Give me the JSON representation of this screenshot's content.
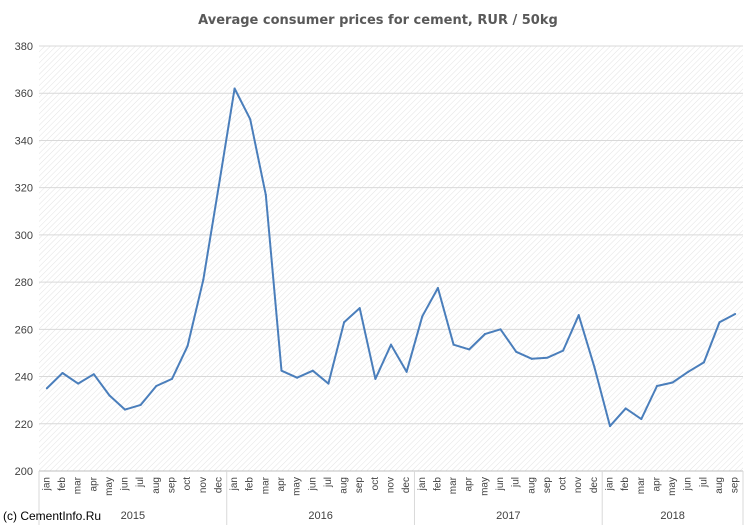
{
  "chart_data": {
    "type": "line",
    "title": "Average consumer prices for cement, RUR / 50kg",
    "xlabel": "",
    "ylabel": "",
    "ylim": [
      200,
      380
    ],
    "yticks": [
      200,
      220,
      240,
      260,
      280,
      300,
      320,
      340,
      360,
      380
    ],
    "grid": true,
    "legend": "none",
    "categories": [
      "jan",
      "feb",
      "mar",
      "apr",
      "may",
      "jun",
      "jul",
      "aug",
      "sep",
      "oct",
      "nov",
      "dec",
      "jan",
      "feb",
      "mar",
      "apr",
      "may",
      "jun",
      "jul",
      "aug",
      "sep",
      "oct",
      "nov",
      "dec",
      "jan",
      "feb",
      "mar",
      "apr",
      "may",
      "jun",
      "jul",
      "aug",
      "sep",
      "oct",
      "nov",
      "dec",
      "jan",
      "feb",
      "mar",
      "apr",
      "may",
      "jun",
      "jul",
      "aug",
      "sep"
    ],
    "year_groups": [
      {
        "label": "2015",
        "count": 12
      },
      {
        "label": "2016",
        "count": 12
      },
      {
        "label": "2017",
        "count": 12
      },
      {
        "label": "2018",
        "count": 9
      }
    ],
    "series": [
      {
        "values": [
          235,
          241.5,
          237,
          241,
          232,
          226,
          228,
          236,
          239,
          253,
          281,
          321,
          362,
          349,
          317,
          242.5,
          239.5,
          242.5,
          237,
          263,
          269,
          239,
          253.5,
          242,
          265.5,
          277.5,
          253.5,
          251.5,
          258,
          260,
          250.5,
          247.5,
          248,
          251,
          266,
          244,
          219,
          226.5,
          222,
          236,
          237.5,
          242,
          246,
          263,
          266.5
        ]
      }
    ],
    "line_color": "#4a7ebb",
    "credit": "(c) CementInfo.Ru"
  }
}
